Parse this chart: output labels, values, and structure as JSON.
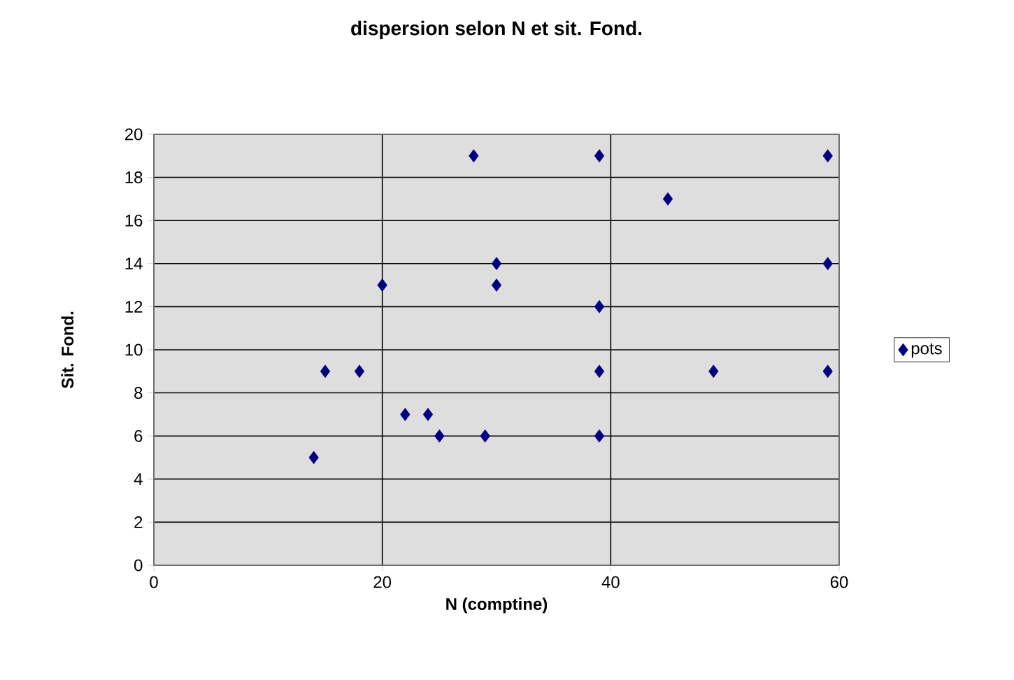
{
  "chart_data": {
    "type": "scatter",
    "title": "dispersion selon N et sit. Fond.",
    "xlabel": "N (comptine)",
    "ylabel": "Sit. Fond.",
    "series": [
      {
        "name": "pots",
        "color": "#000080",
        "x": [
          14,
          15,
          18,
          20,
          22,
          24,
          25,
          28,
          29,
          30,
          30,
          39,
          39,
          39,
          39,
          45,
          49,
          59,
          59,
          59
        ],
        "values": [
          5,
          9,
          9,
          13,
          7,
          7,
          6,
          19,
          6,
          14,
          13,
          19,
          12,
          9,
          6,
          17,
          9,
          19,
          14,
          9
        ]
      }
    ],
    "xlim": [
      0,
      60
    ],
    "xticks": [
      0,
      20,
      40,
      60
    ],
    "ylim": [
      0,
      20
    ],
    "yticks": [
      0,
      2,
      4,
      6,
      8,
      10,
      12,
      14,
      16,
      18,
      20
    ],
    "grid": true,
    "legend": "right",
    "marker": "diamond"
  }
}
